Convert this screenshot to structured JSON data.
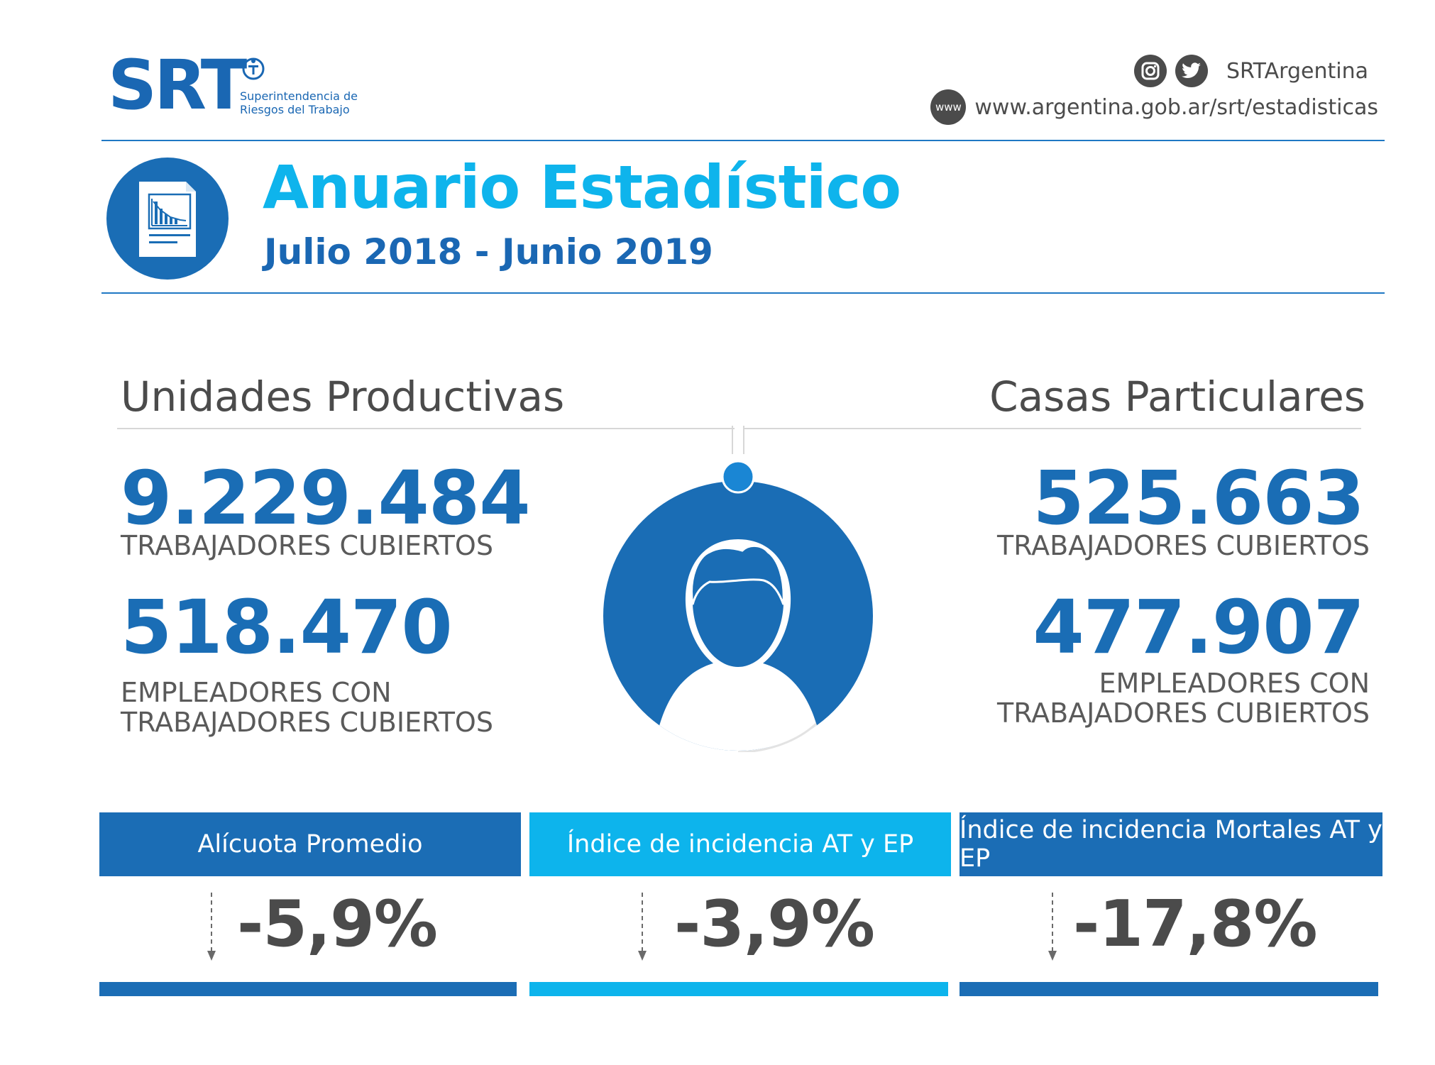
{
  "header": {
    "logo_text": "SRT",
    "logo_subtitle": "Superintendencia de\nRiesgos del Trabajo",
    "social_handle": "SRTArgentina",
    "www_badge": "www",
    "website": "www.argentina.gob.ar/srt/estadisticas",
    "icons": [
      "instagram-icon",
      "twitter-icon",
      "www-icon"
    ]
  },
  "title": {
    "main": "Anuario Estadístico",
    "period": "Julio 2018 - Junio 2019"
  },
  "left": {
    "heading": "Unidades Productivas",
    "stat1_value": "9.229.484",
    "stat1_label": "TRABAJADORES CUBIERTOS",
    "stat2_value": "518.470",
    "stat2_label": "EMPLEADORES CON\nTRABAJADORES CUBIERTOS"
  },
  "right": {
    "heading": "Casas Particulares",
    "stat1_value": "525.663",
    "stat1_label": "TRABAJADORES CUBIERTOS",
    "stat2_value": "477.907",
    "stat2_label": "EMPLEADORES CON\nTRABAJADORES CUBIERTOS"
  },
  "indicators": [
    {
      "label": "Alícuota Promedio",
      "value": "-5,9%",
      "color": "#1b6db5"
    },
    {
      "label": "Índice de incidencia AT y EP",
      "value": "-3,9%",
      "color": "#0db4ec"
    },
    {
      "label": "Índice de incidencia Mortales  AT y EP",
      "value": "-17,8%",
      "color": "#1b6db5"
    }
  ],
  "colors": {
    "primary_blue": "#1a6db5",
    "light_blue": "#0eb4ec",
    "text_gray": "#4b4b4b"
  }
}
